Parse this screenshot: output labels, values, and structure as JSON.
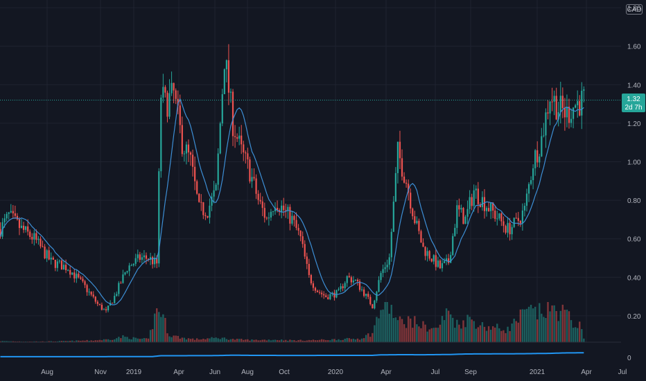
{
  "currency": "CAD",
  "price_label": "1.32",
  "countdown_label": "2d 7h",
  "colors": {
    "background": "#131722",
    "up": "#26a69a",
    "down": "#ef5350",
    "ma": "#2962ff",
    "ma_line": "#3d8fd6",
    "indicator": "#2196f3",
    "grid": "#1f2330",
    "text": "#b2b5be",
    "last_price": "#26a69a"
  },
  "chart_data": {
    "type": "candlestick",
    "title": "",
    "xlabel": "",
    "ylabel": "",
    "ylim": [
      0,
      1.8
    ],
    "y_ticks": [
      "0.20",
      "0.40",
      "0.60",
      "0.80",
      "1.00",
      "1.20",
      "1.40",
      "1.60",
      "1.80"
    ],
    "x_ticks": [
      "Aug",
      "Nov",
      "2019",
      "Apr",
      "Jun",
      "Aug",
      "Oct",
      "2020",
      "Apr",
      "Jul",
      "Sep",
      "2021",
      "Apr",
      "Jul"
    ],
    "last_price": 1.32,
    "grid": true,
    "price_anchors": [
      [
        0,
        0.65
      ],
      [
        4,
        0.72
      ],
      [
        10,
        0.65
      ],
      [
        16,
        0.6
      ],
      [
        24,
        0.48
      ],
      [
        32,
        0.45
      ],
      [
        40,
        0.35
      ],
      [
        46,
        0.26
      ],
      [
        50,
        0.22
      ],
      [
        54,
        0.3
      ],
      [
        60,
        0.45
      ],
      [
        66,
        0.5
      ],
      [
        70,
        0.5
      ],
      [
        74,
        0.47
      ],
      [
        76,
        1.35
      ],
      [
        78,
        1.3
      ],
      [
        82,
        1.35
      ],
      [
        86,
        1.1
      ],
      [
        90,
        1.0
      ],
      [
        94,
        0.75
      ],
      [
        98,
        0.75
      ],
      [
        102,
        0.85
      ],
      [
        106,
        1.55
      ],
      [
        110,
        1.2
      ],
      [
        114,
        1.05
      ],
      [
        118,
        0.95
      ],
      [
        122,
        0.8
      ],
      [
        126,
        0.7
      ],
      [
        130,
        0.8
      ],
      [
        134,
        0.75
      ],
      [
        138,
        0.7
      ],
      [
        142,
        0.6
      ],
      [
        146,
        0.4
      ],
      [
        150,
        0.33
      ],
      [
        154,
        0.3
      ],
      [
        160,
        0.32
      ],
      [
        164,
        0.4
      ],
      [
        168,
        0.38
      ],
      [
        172,
        0.32
      ],
      [
        176,
        0.25
      ],
      [
        180,
        0.42
      ],
      [
        184,
        0.5
      ],
      [
        188,
        1.05
      ],
      [
        192,
        0.9
      ],
      [
        196,
        0.7
      ],
      [
        200,
        0.55
      ],
      [
        204,
        0.5
      ],
      [
        208,
        0.45
      ],
      [
        212,
        0.48
      ],
      [
        216,
        0.75
      ],
      [
        220,
        0.7
      ],
      [
        224,
        0.85
      ],
      [
        228,
        0.8
      ],
      [
        232,
        0.75
      ],
      [
        236,
        0.7
      ],
      [
        240,
        0.65
      ],
      [
        244,
        0.68
      ],
      [
        248,
        0.75
      ],
      [
        252,
        1.0
      ],
      [
        256,
        1.12
      ],
      [
        260,
        1.35
      ],
      [
        264,
        1.28
      ],
      [
        268,
        1.25
      ],
      [
        272,
        1.3
      ],
      [
        276,
        1.32
      ]
    ],
    "volume_anchors": [
      [
        0,
        0.03
      ],
      [
        10,
        0.02
      ],
      [
        20,
        0.02
      ],
      [
        30,
        0.03
      ],
      [
        44,
        0.05
      ],
      [
        52,
        0.08
      ],
      [
        58,
        0.15
      ],
      [
        64,
        0.1
      ],
      [
        70,
        0.08
      ],
      [
        74,
        0.9
      ],
      [
        76,
        0.85
      ],
      [
        80,
        0.2
      ],
      [
        86,
        0.12
      ],
      [
        92,
        0.08
      ],
      [
        98,
        0.1
      ],
      [
        104,
        0.12
      ],
      [
        110,
        0.08
      ],
      [
        120,
        0.06
      ],
      [
        130,
        0.07
      ],
      [
        140,
        0.05
      ],
      [
        150,
        0.06
      ],
      [
        160,
        0.08
      ],
      [
        170,
        0.1
      ],
      [
        176,
        0.25
      ],
      [
        180,
        0.95
      ],
      [
        184,
        1.0
      ],
      [
        188,
        0.55
      ],
      [
        194,
        0.6
      ],
      [
        200,
        0.45
      ],
      [
        206,
        0.35
      ],
      [
        212,
        0.85
      ],
      [
        216,
        0.5
      ],
      [
        222,
        0.65
      ],
      [
        228,
        0.45
      ],
      [
        234,
        0.4
      ],
      [
        240,
        0.35
      ],
      [
        246,
        0.7
      ],
      [
        250,
        0.85
      ],
      [
        254,
        0.8
      ],
      [
        260,
        0.9
      ],
      [
        266,
        0.85
      ],
      [
        270,
        0.6
      ],
      [
        274,
        0.45
      ],
      [
        276,
        0.1
      ]
    ],
    "indicator_anchors": [
      [
        0,
        0.42
      ],
      [
        40,
        0.42
      ],
      [
        72,
        0.45
      ],
      [
        76,
        0.7
      ],
      [
        100,
        0.72
      ],
      [
        110,
        0.85
      ],
      [
        120,
        0.8
      ],
      [
        140,
        0.78
      ],
      [
        160,
        0.8
      ],
      [
        176,
        0.8
      ],
      [
        180,
        0.95
      ],
      [
        190,
        1.0
      ],
      [
        200,
        0.98
      ],
      [
        212,
        1.05
      ],
      [
        220,
        1.2
      ],
      [
        240,
        1.25
      ],
      [
        250,
        1.3
      ],
      [
        260,
        1.38
      ],
      [
        266,
        1.5
      ],
      [
        270,
        1.52
      ],
      [
        276,
        1.55
      ]
    ],
    "bar_count": 277
  }
}
